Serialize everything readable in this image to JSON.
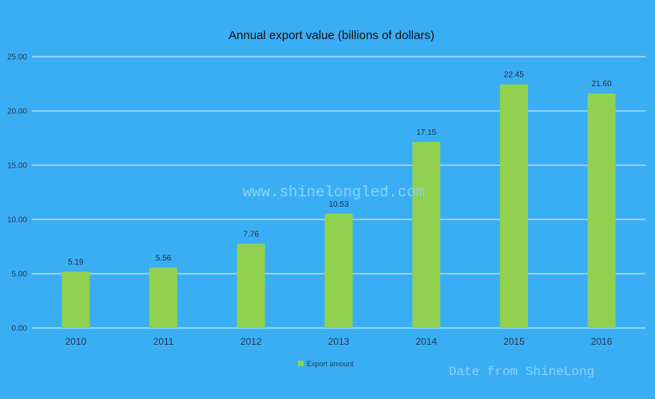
{
  "colors": {
    "background": "#3aaef5",
    "bar": "#92d050",
    "grid": "#e8f4fc",
    "watermark": "#8ed1f7"
  },
  "chart_data": {
    "type": "bar",
    "title": "Annual export value (billions of dollars)",
    "xlabel": "",
    "ylabel": "",
    "categories": [
      "2010",
      "2011",
      "2012",
      "2013",
      "2014",
      "2015",
      "2016"
    ],
    "series": [
      {
        "name": "Export amount",
        "values": [
          5.19,
          5.56,
          7.76,
          10.53,
          17.15,
          22.45,
          21.6
        ],
        "labels": [
          "5.19",
          "5.56",
          "7.76",
          "10.53",
          "17.15",
          "22.45",
          "21.60"
        ]
      }
    ],
    "ylim": [
      0,
      25
    ],
    "yticks": [
      0,
      5,
      10,
      15,
      20,
      25
    ],
    "ytick_labels": [
      "0.00",
      "5.00",
      "10.00",
      "15.00",
      "20.00",
      "25.00"
    ],
    "grid": true,
    "legend_position": "bottom"
  },
  "watermarks": {
    "center": "www.shinelongled.com",
    "bottom_right": "Date from ShineLong"
  }
}
